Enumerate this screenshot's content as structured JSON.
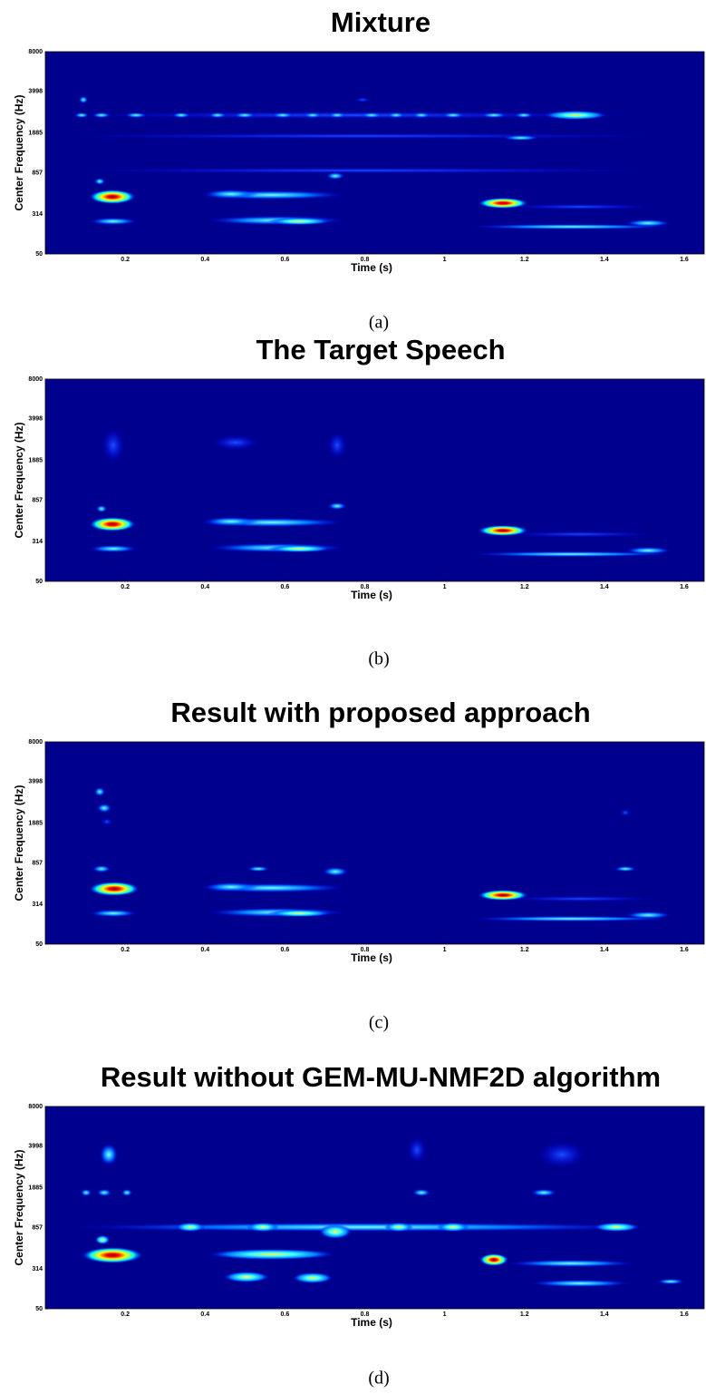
{
  "chart_data": [
    {
      "type": "spectrogram",
      "title": "Mixture",
      "xlabel": "Time (s)",
      "ylabel": "Center Frequency (Hz)",
      "caption": "(a)",
      "xlim": [
        0,
        1.65
      ],
      "xticks": [
        0.2,
        0.4,
        0.6,
        0.8,
        1,
        1.2,
        1.4,
        1.6
      ],
      "ylim": [
        50,
        8000
      ],
      "yticks": [
        50,
        314,
        857,
        1885,
        3998,
        8000
      ],
      "yscale": "erb",
      "background": "#00008f"
    },
    {
      "type": "spectrogram",
      "title": "The Target Speech",
      "xlabel": "Time (s)",
      "ylabel": "Center Frequency (Hz)",
      "caption": "(b)",
      "xlim": [
        0,
        1.65
      ],
      "xticks": [
        0.2,
        0.4,
        0.6,
        0.8,
        1,
        1.2,
        1.4,
        1.6
      ],
      "ylim": [
        50,
        8000
      ],
      "yticks": [
        50,
        314,
        857,
        1885,
        3998,
        8000
      ],
      "yscale": "erb",
      "background": "#00008f"
    },
    {
      "type": "spectrogram",
      "title": "Result with proposed approach",
      "xlabel": "Time (s)",
      "ylabel": "Center Frequency (Hz)",
      "caption": "(c)",
      "xlim": [
        0,
        1.65
      ],
      "xticks": [
        0.2,
        0.4,
        0.6,
        0.8,
        1,
        1.2,
        1.4,
        1.6
      ],
      "ylim": [
        50,
        8000
      ],
      "yticks": [
        50,
        314,
        857,
        1885,
        3998,
        8000
      ],
      "yscale": "erb",
      "background": "#00008f"
    },
    {
      "type": "spectrogram",
      "title": "Result without GEM-MU-NMF2D algorithm",
      "xlabel": "Time (s)",
      "ylabel": "Center Frequency (Hz)",
      "caption": "(d)",
      "xlim": [
        0,
        1.65
      ],
      "xticks": [
        0.2,
        0.4,
        0.6,
        0.8,
        1,
        1.2,
        1.4,
        1.6
      ],
      "ylim": [
        50,
        8000
      ],
      "yticks": [
        50,
        314,
        857,
        1885,
        3998,
        8000
      ],
      "yscale": "erb",
      "background": "#00008f"
    }
  ]
}
